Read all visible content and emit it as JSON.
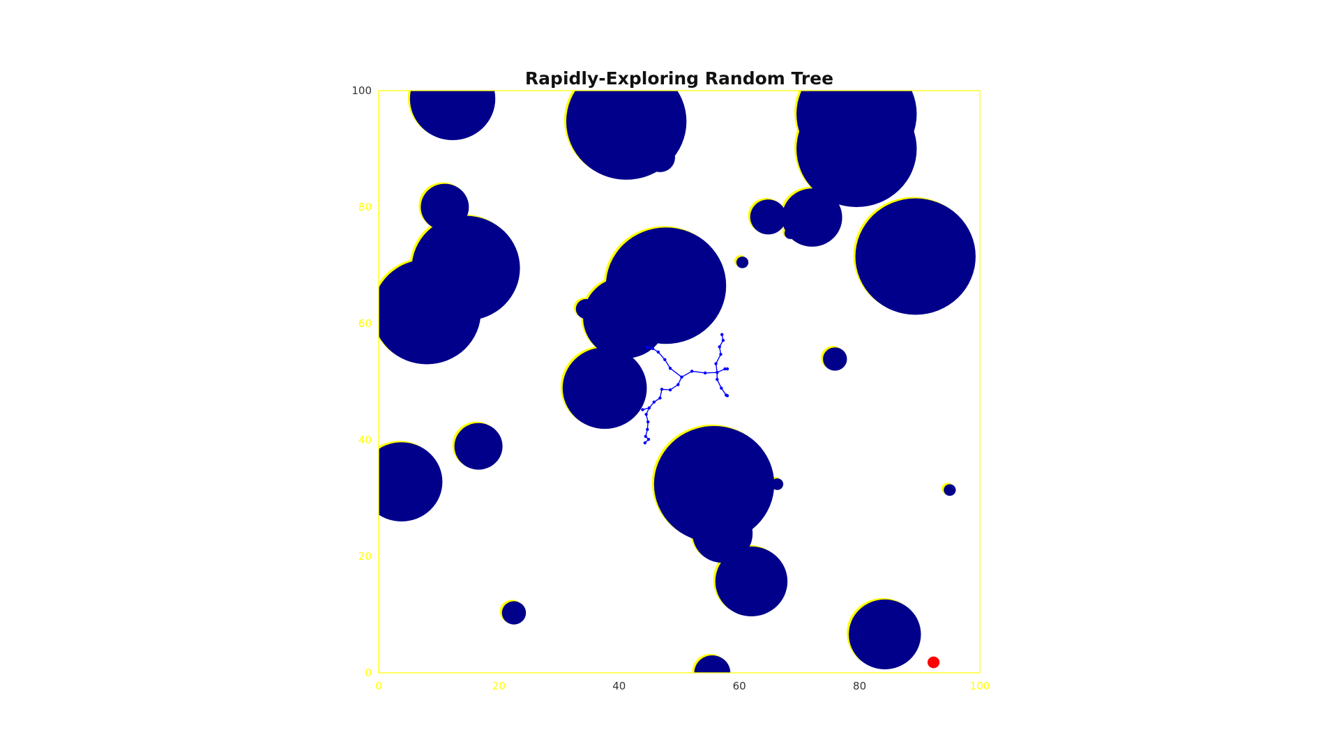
{
  "chart_data": {
    "type": "scatter",
    "title": "Rapidly-Exploring Random Tree",
    "xlabel": "",
    "ylabel": "",
    "xlim": [
      0,
      100
    ],
    "ylim": [
      0,
      100
    ],
    "grid": false,
    "x_ticks": [
      "0",
      "20",
      "40",
      "60",
      "80",
      "100"
    ],
    "y_ticks": [
      "0",
      "20",
      "40",
      "60",
      "80",
      "100"
    ],
    "x_tick_values": [
      0,
      20,
      40,
      60,
      80,
      100
    ],
    "y_tick_values": [
      0,
      20,
      40,
      60,
      80,
      100
    ],
    "obstacles": [
      {
        "x": 12.3,
        "y": 98.6,
        "r": 7.1
      },
      {
        "x": 41.2,
        "y": 94.7,
        "r": 10.0
      },
      {
        "x": 46.8,
        "y": 88.5,
        "r": 2.5
      },
      {
        "x": 79.5,
        "y": 96.0,
        "r": 10.0
      },
      {
        "x": 79.5,
        "y": 90.0,
        "r": 10.0
      },
      {
        "x": 11.0,
        "y": 80.0,
        "r": 4.0
      },
      {
        "x": 64.8,
        "y": 78.3,
        "r": 3.0
      },
      {
        "x": 72.1,
        "y": 78.2,
        "r": 5.0
      },
      {
        "x": 68.5,
        "y": 75.5,
        "r": 1.0
      },
      {
        "x": 14.5,
        "y": 69.5,
        "r": 9.0
      },
      {
        "x": 8.0,
        "y": 62.0,
        "r": 9.0
      },
      {
        "x": 89.3,
        "y": 71.5,
        "r": 10.0
      },
      {
        "x": 60.5,
        "y": 70.5,
        "r": 1.0
      },
      {
        "x": 47.8,
        "y": 66.5,
        "r": 10.0
      },
      {
        "x": 41.0,
        "y": 61.0,
        "r": 7.0
      },
      {
        "x": 34.5,
        "y": 62.5,
        "r": 1.7
      },
      {
        "x": 75.9,
        "y": 53.9,
        "r": 2.0
      },
      {
        "x": 37.6,
        "y": 48.9,
        "r": 7.0
      },
      {
        "x": 16.6,
        "y": 38.9,
        "r": 4.0
      },
      {
        "x": 3.8,
        "y": 32.8,
        "r": 6.8
      },
      {
        "x": 55.8,
        "y": 32.4,
        "r": 10.0
      },
      {
        "x": 66.3,
        "y": 32.4,
        "r": 1.0
      },
      {
        "x": 57.2,
        "y": 23.9,
        "r": 5.0
      },
      {
        "x": 62.0,
        "y": 15.7,
        "r": 6.0
      },
      {
        "x": 95.0,
        "y": 31.4,
        "r": 1.0
      },
      {
        "x": 22.5,
        "y": 10.3,
        "r": 2.0
      },
      {
        "x": 84.2,
        "y": 6.6,
        "r": 6.0
      },
      {
        "x": 55.5,
        "y": 0.0,
        "r": 3.0
      }
    ],
    "goal": {
      "x": 92.3,
      "y": 1.8,
      "r": 1.0,
      "color": "#ff0000"
    },
    "tree_nodes": [
      [
        50.4,
        50.8
      ],
      [
        52.1,
        51.8
      ],
      [
        54.3,
        51.5
      ],
      [
        56.3,
        51.6
      ],
      [
        57.6,
        52.2
      ],
      [
        58.0,
        52.2
      ],
      [
        48.5,
        52.3
      ],
      [
        47.6,
        53.8
      ],
      [
        46.5,
        55.1
      ],
      [
        45.6,
        55.7
      ],
      [
        44.7,
        55.9
      ],
      [
        56.1,
        53.1
      ],
      [
        56.9,
        54.7
      ],
      [
        56.7,
        56.0
      ],
      [
        57.3,
        57.1
      ],
      [
        57.1,
        58.1
      ],
      [
        49.8,
        49.5
      ],
      [
        48.5,
        48.6
      ],
      [
        47.1,
        48.7
      ],
      [
        46.8,
        47.2
      ],
      [
        45.8,
        46.5
      ],
      [
        45.0,
        45.5
      ],
      [
        44.5,
        44.4
      ],
      [
        44.8,
        43.1
      ],
      [
        44.7,
        41.8
      ],
      [
        44.4,
        40.6
      ],
      [
        44.9,
        40.1
      ],
      [
        44.3,
        39.5
      ],
      [
        43.9,
        45.2
      ],
      [
        56.3,
        50.4
      ],
      [
        57.0,
        48.9
      ],
      [
        57.8,
        47.7
      ],
      [
        58.0,
        47.6
      ]
    ],
    "tree_edges": [
      [
        0,
        1
      ],
      [
        1,
        2
      ],
      [
        2,
        3
      ],
      [
        3,
        4
      ],
      [
        4,
        5
      ],
      [
        0,
        6
      ],
      [
        6,
        7
      ],
      [
        7,
        8
      ],
      [
        8,
        9
      ],
      [
        9,
        10
      ],
      [
        3,
        11
      ],
      [
        11,
        12
      ],
      [
        12,
        13
      ],
      [
        13,
        14
      ],
      [
        14,
        15
      ],
      [
        0,
        16
      ],
      [
        16,
        17
      ],
      [
        17,
        18
      ],
      [
        18,
        19
      ],
      [
        19,
        20
      ],
      [
        20,
        21
      ],
      [
        21,
        22
      ],
      [
        22,
        23
      ],
      [
        23,
        24
      ],
      [
        24,
        25
      ],
      [
        25,
        26
      ],
      [
        26,
        27
      ],
      [
        21,
        28
      ],
      [
        3,
        29
      ],
      [
        29,
        30
      ],
      [
        30,
        31
      ],
      [
        31,
        32
      ]
    ],
    "colors": {
      "obstacle": "#00008b",
      "obstacle_halo": "#ffff00",
      "tree": "#0000ff",
      "goal": "#ff0000",
      "axes_edge": "#ffff00",
      "tick_label": "#ffff00",
      "title": "#111111"
    }
  }
}
